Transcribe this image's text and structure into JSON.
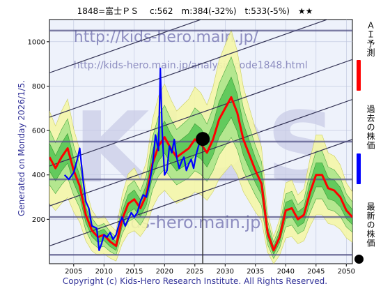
{
  "chart_data": {
    "type": "line",
    "title": "1848=富士ＰＳ　 c:562　m:384(-32%)　t:533(-5%)　★★",
    "side_label": "Generated on Monday 2026/1/5.",
    "footer": "Copyright (c) Kids-Hero Research Institute. All Rights Reserved.",
    "watermarks": [
      "http://kids-hero.main.jp/",
      "http://kids-hero.main.jp/analysis/code1848.html",
      "KIDS",
      "kids-hero.main.jp"
    ],
    "xlim": [
      2001,
      2051
    ],
    "ylim": [
      0,
      1100
    ],
    "x_ticks": [
      2005,
      2010,
      2015,
      2020,
      2025,
      2030,
      2035,
      2040,
      2045,
      2050
    ],
    "y_ticks": [
      200,
      400,
      600,
      800,
      1000
    ],
    "grid": true,
    "legend_position": "right",
    "legend": [
      {
        "label": "ＡＩ予測",
        "color": "#ff0000",
        "kind": "line"
      },
      {
        "label": "過去の株価",
        "color": "#0000ff",
        "kind": "line"
      },
      {
        "label": "最新の株価",
        "color": "#000000",
        "kind": "dot"
      }
    ],
    "horizontal_levels": [
      40,
      210,
      380,
      550,
      1050
    ],
    "current": {
      "x": 2026.3,
      "y": 562
    },
    "vertical_marker_x": 2026.3,
    "colors": {
      "prediction": "#ff0000",
      "history": "#0000ff",
      "band_outer": "#f5f7a8",
      "band_inner": "#33cc33",
      "level": "#555588",
      "channel": "#333355"
    },
    "series": [
      {
        "name": "ＡＩ予測",
        "color": "#ff0000",
        "points": [
          [
            2001,
            480
          ],
          [
            2002,
            430
          ],
          [
            2003,
            480
          ],
          [
            2004,
            520
          ],
          [
            2005,
            420
          ],
          [
            2006,
            350
          ],
          [
            2007,
            220
          ],
          [
            2008,
            150
          ],
          [
            2009,
            120
          ],
          [
            2010,
            130
          ],
          [
            2011,
            100
          ],
          [
            2012,
            80
          ],
          [
            2013,
            200
          ],
          [
            2014,
            270
          ],
          [
            2015,
            290
          ],
          [
            2016,
            250
          ],
          [
            2017,
            310
          ],
          [
            2018,
            450
          ],
          [
            2019,
            530
          ],
          [
            2020,
            570
          ],
          [
            2021,
            520
          ],
          [
            2022,
            480
          ],
          [
            2023,
            500
          ],
          [
            2024,
            520
          ],
          [
            2025,
            560
          ],
          [
            2026,
            540
          ],
          [
            2027,
            500
          ],
          [
            2028,
            560
          ],
          [
            2029,
            650
          ],
          [
            2030,
            700
          ],
          [
            2031,
            750
          ],
          [
            2032,
            680
          ],
          [
            2033,
            560
          ],
          [
            2034,
            490
          ],
          [
            2035,
            420
          ],
          [
            2036,
            360
          ],
          [
            2037,
            140
          ],
          [
            2038,
            60
          ],
          [
            2039,
            120
          ],
          [
            2040,
            240
          ],
          [
            2041,
            250
          ],
          [
            2042,
            200
          ],
          [
            2043,
            220
          ],
          [
            2044,
            320
          ],
          [
            2045,
            400
          ],
          [
            2046,
            400
          ],
          [
            2047,
            340
          ],
          [
            2048,
            330
          ],
          [
            2049,
            300
          ],
          [
            2050,
            240
          ],
          [
            2051,
            210
          ]
        ]
      },
      {
        "name": "過去の株価",
        "color": "#0000ff",
        "points": [
          [
            2003.5,
            400
          ],
          [
            2004.2,
            380
          ],
          [
            2005,
            410
          ],
          [
            2005.6,
            470
          ],
          [
            2006,
            520
          ],
          [
            2006.5,
            390
          ],
          [
            2007,
            280
          ],
          [
            2007.5,
            250
          ],
          [
            2008,
            170
          ],
          [
            2008.8,
            160
          ],
          [
            2009.2,
            60
          ],
          [
            2009.6,
            90
          ],
          [
            2010,
            130
          ],
          [
            2010.5,
            120
          ],
          [
            2011,
            140
          ],
          [
            2011.5,
            110
          ],
          [
            2012,
            130
          ],
          [
            2012.5,
            180
          ],
          [
            2013,
            210
          ],
          [
            2013.5,
            170
          ],
          [
            2014,
            200
          ],
          [
            2014.5,
            230
          ],
          [
            2015,
            210
          ],
          [
            2015.5,
            230
          ],
          [
            2016,
            280
          ],
          [
            2016.5,
            310
          ],
          [
            2017,
            300
          ],
          [
            2017.5,
            360
          ],
          [
            2018,
            440
          ],
          [
            2018.5,
            580
          ],
          [
            2019,
            510
          ],
          [
            2019.3,
            880
          ],
          [
            2019.6,
            600
          ],
          [
            2020,
            400
          ],
          [
            2020.4,
            420
          ],
          [
            2020.8,
            530
          ],
          [
            2021.2,
            500
          ],
          [
            2021.6,
            560
          ],
          [
            2022,
            480
          ],
          [
            2022.4,
            430
          ],
          [
            2022.8,
            460
          ],
          [
            2023.2,
            480
          ],
          [
            2023.6,
            420
          ],
          [
            2024,
            450
          ],
          [
            2024.4,
            470
          ],
          [
            2024.8,
            430
          ],
          [
            2025.2,
            490
          ],
          [
            2025.6,
            530
          ],
          [
            2026,
            560
          ]
        ]
      }
    ]
  }
}
